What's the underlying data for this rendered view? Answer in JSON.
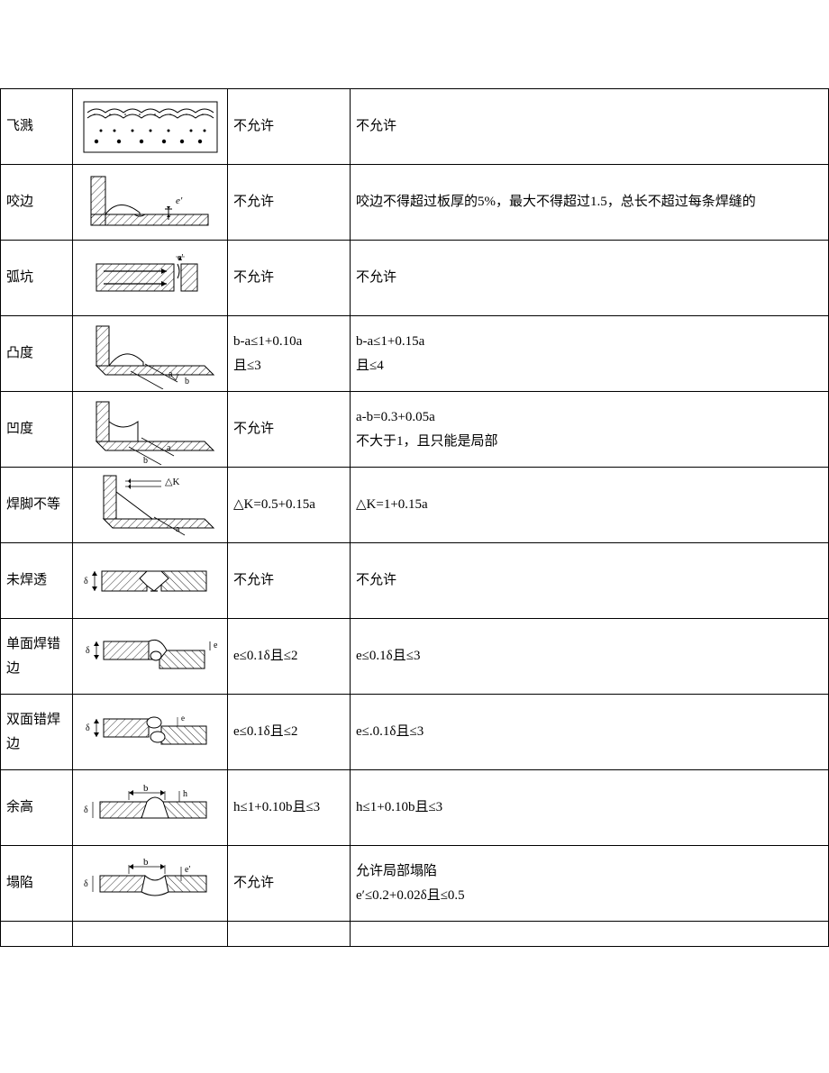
{
  "rows": [
    {
      "name": "飞溅",
      "col3": "不允许",
      "col4": "不允许",
      "diagram": "spatter"
    },
    {
      "name": "咬边",
      "col3": "不允许",
      "col4": "咬边不得超过板厚的5%，最大不得超过1.5，总长不超过每条焊缝的",
      "diagram": "undercut"
    },
    {
      "name": "弧坑",
      "col3": "不允许",
      "col4": "不允许",
      "diagram": "crater"
    },
    {
      "name": "凸度",
      "col3": "b-a≤1+0.10a\n且≤3",
      "col4": "b-a≤1+0.15a\n且≤4",
      "diagram": "convexity"
    },
    {
      "name": "凹度",
      "col3": "不允许",
      "col4": "a-b=0.3+0.05a\n不大于1，且只能是局部",
      "diagram": "concavity"
    },
    {
      "name": "焊脚不等",
      "col3": "△K=0.5+0.15a",
      "col4": "△K=1+0.15a",
      "diagram": "unequal-leg"
    },
    {
      "name": "未焊透",
      "col3": "不允许",
      "col4": "不允许",
      "diagram": "incomplete-penetration"
    },
    {
      "name": "单面焊错边",
      "col3": "e≤0.1δ且≤2",
      "col4": "e≤0.1δ且≤3",
      "diagram": "single-misalignment"
    },
    {
      "name": "双面错焊边",
      "col3": "e≤0.1δ且≤2",
      "col4": "e≤.0.1δ且≤3",
      "diagram": "double-misalignment"
    },
    {
      "name": "余高",
      "col3": "h≤1+0.10b且≤3",
      "col4": "h≤1+0.10b且≤3",
      "diagram": "reinforcement"
    },
    {
      "name": "塌陷",
      "col3": "不允许",
      "col4": "允许局部塌陷\ne′≤0.2+0.02δ且≤0.5",
      "diagram": "sagging"
    }
  ],
  "style": {
    "hatch_color": "#000000",
    "stroke": "#000000",
    "fill_bg": "#ffffff"
  }
}
